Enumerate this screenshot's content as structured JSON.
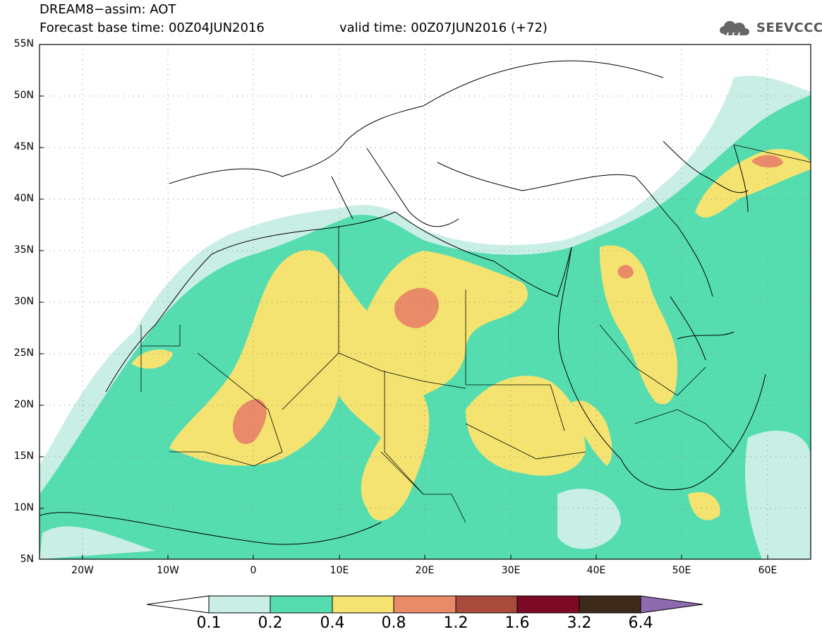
{
  "header": {
    "line1": "DREAM8−assim: AOT",
    "base_time": "Forecast base time: 00Z04JUN2016",
    "valid_time": "valid time: 00Z07JUN2016 (+72)",
    "logo_text": "SEEVCCC",
    "logo_icon": "cloud-rain-icon"
  },
  "map": {
    "lon_range": [
      -25,
      65
    ],
    "lat_range": [
      5,
      55
    ],
    "lat_ticks": [
      {
        "lat": 55,
        "label": "55N"
      },
      {
        "lat": 50,
        "label": "50N"
      },
      {
        "lat": 45,
        "label": "45N"
      },
      {
        "lat": 40,
        "label": "40N"
      },
      {
        "lat": 35,
        "label": "35N"
      },
      {
        "lat": 30,
        "label": "30N"
      },
      {
        "lat": 25,
        "label": "25N"
      },
      {
        "lat": 20,
        "label": "20N"
      },
      {
        "lat": 15,
        "label": "15N"
      },
      {
        "lat": 10,
        "label": "10N"
      },
      {
        "lat": 5,
        "label": "5N"
      }
    ],
    "lon_ticks": [
      {
        "lon": -20,
        "label": "20W"
      },
      {
        "lon": -10,
        "label": "10W"
      },
      {
        "lon": 0,
        "label": "0"
      },
      {
        "lon": 10,
        "label": "10E"
      },
      {
        "lon": 20,
        "label": "20E"
      },
      {
        "lon": 30,
        "label": "30E"
      },
      {
        "lon": 40,
        "label": "40E"
      },
      {
        "lon": 50,
        "label": "50E"
      },
      {
        "lon": 60,
        "label": "60E"
      }
    ],
    "gridlines": "dotted"
  },
  "colorbar": {
    "labels": [
      "0.1",
      "0.2",
      "0.4",
      "0.8",
      "1.2",
      "1.6",
      "3.2",
      "6.4"
    ],
    "colors": [
      "#ffffff",
      "#c9eee6",
      "#55ddb0",
      "#f4e370",
      "#e98a68",
      "#a84b3c",
      "#7d0a25",
      "#3d2a1a",
      "#8f6ab0"
    ]
  }
}
